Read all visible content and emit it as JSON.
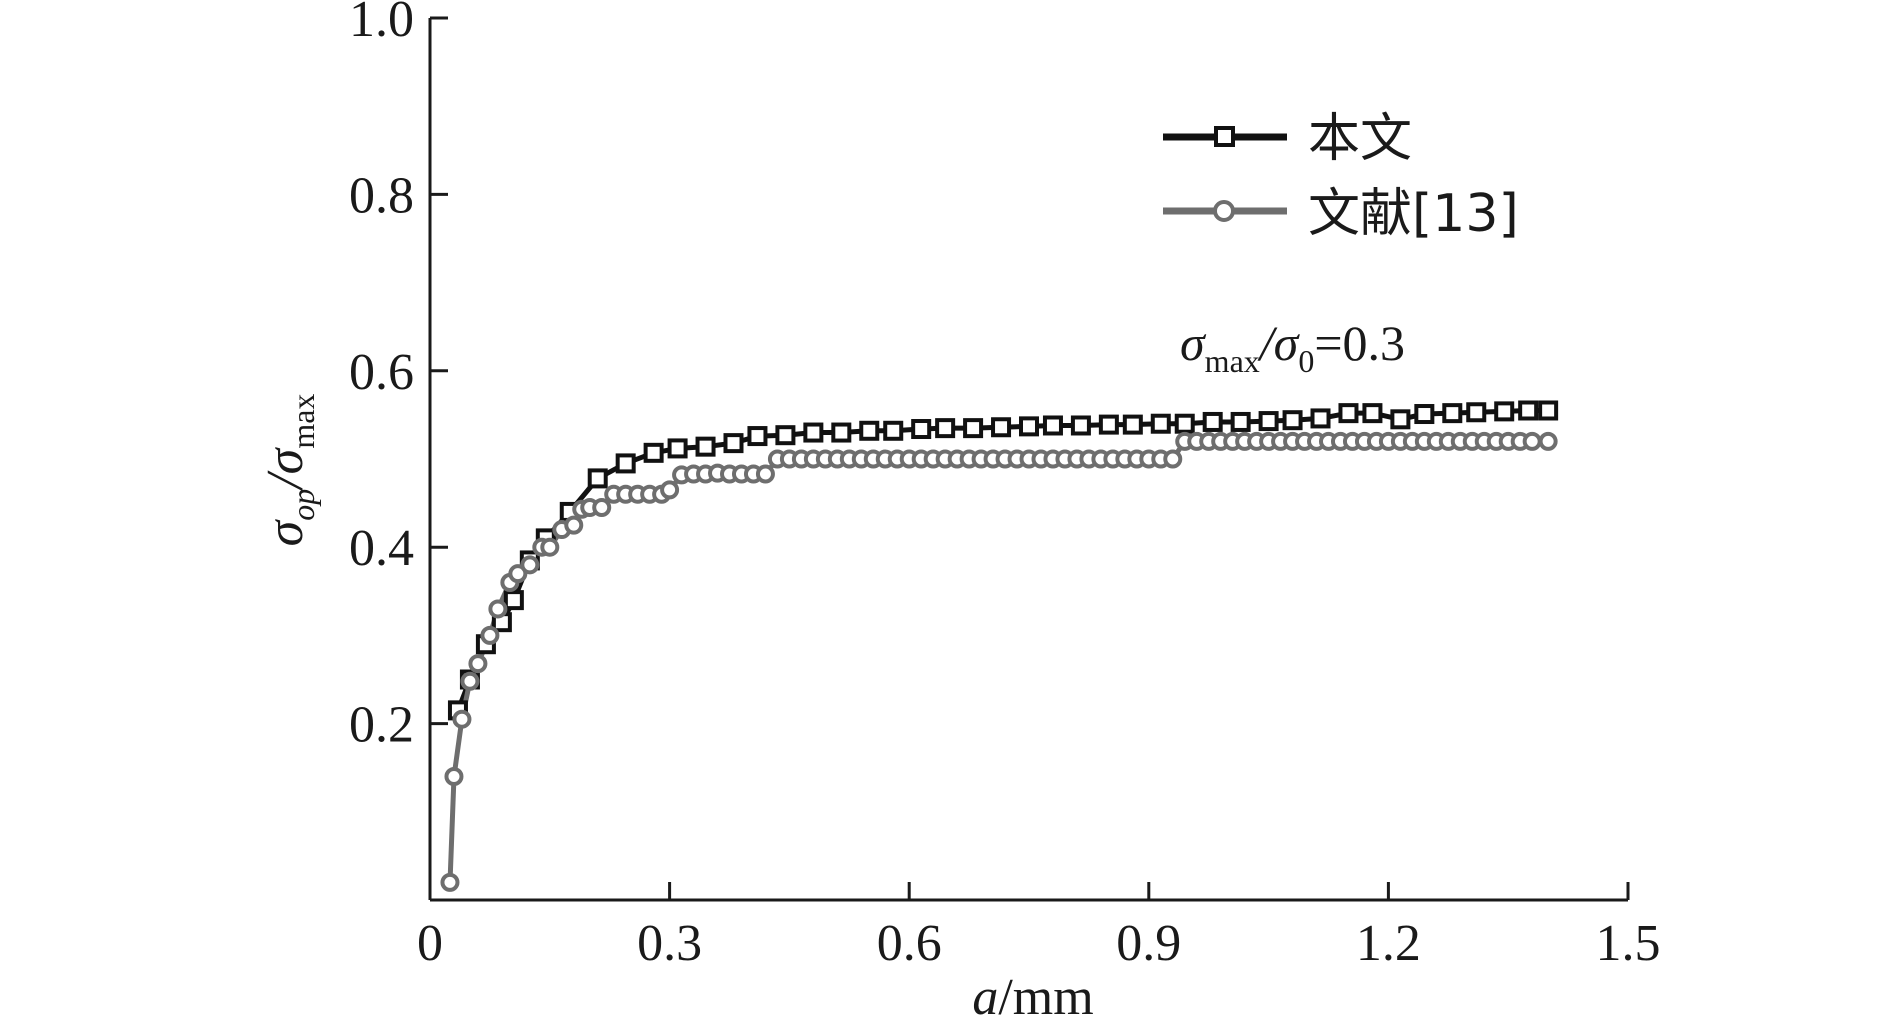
{
  "chart_data": {
    "type": "line",
    "x_ticks": [
      "0",
      "0.3",
      "0.6",
      "0.9",
      "1.2",
      "1.5"
    ],
    "y_ticks": [
      "0.2",
      "0.4",
      "0.6",
      "0.8",
      "1.0"
    ],
    "xlim": [
      0,
      1.5
    ],
    "ylim": [
      0,
      1.0
    ],
    "xlabel": {
      "var": "a",
      "unit": "/mm"
    },
    "ylabel": {
      "main1": "σ",
      "sub1": "op",
      "sep": "/σ",
      "sub2": "max"
    },
    "annotation": {
      "s1": "σ",
      "sub1": "max",
      "mid": "/σ",
      "sub2": "0",
      "tail": "=0.3"
    },
    "grid": false,
    "legend_position": "top-right",
    "series": [
      {
        "name": "本文",
        "color": "#111111",
        "marker": "square",
        "x": [
          0.035,
          0.05,
          0.07,
          0.09,
          0.105,
          0.125,
          0.145,
          0.175,
          0.21,
          0.245,
          0.28,
          0.31,
          0.345,
          0.38,
          0.41,
          0.445,
          0.48,
          0.515,
          0.55,
          0.58,
          0.615,
          0.645,
          0.68,
          0.715,
          0.75,
          0.78,
          0.815,
          0.85,
          0.88,
          0.915,
          0.945,
          0.98,
          1.015,
          1.05,
          1.08,
          1.115,
          1.15,
          1.18,
          1.215,
          1.245,
          1.28,
          1.31,
          1.345,
          1.375,
          1.4
        ],
        "y": [
          0.215,
          0.25,
          0.29,
          0.315,
          0.34,
          0.385,
          0.41,
          0.44,
          0.478,
          0.495,
          0.507,
          0.512,
          0.514,
          0.518,
          0.526,
          0.527,
          0.53,
          0.53,
          0.532,
          0.532,
          0.534,
          0.535,
          0.535,
          0.536,
          0.537,
          0.538,
          0.538,
          0.539,
          0.539,
          0.54,
          0.54,
          0.542,
          0.542,
          0.543,
          0.544,
          0.546,
          0.552,
          0.552,
          0.545,
          0.551,
          0.552,
          0.553,
          0.554,
          0.555,
          0.555
        ]
      },
      {
        "name": "文献[13]",
        "color": "#6e6e6e",
        "marker": "circle",
        "x": [
          0.025,
          0.03,
          0.04,
          0.05,
          0.06,
          0.075,
          0.085,
          0.1,
          0.11,
          0.125,
          0.14,
          0.15,
          0.165,
          0.18,
          0.19,
          0.2,
          0.215,
          0.23,
          0.245,
          0.26,
          0.275,
          0.29,
          0.3,
          0.315,
          0.33,
          0.345,
          0.36,
          0.375,
          0.39,
          0.405,
          0.42,
          0.435,
          0.45,
          0.465,
          0.48,
          0.495,
          0.51,
          0.525,
          0.54,
          0.555,
          0.57,
          0.585,
          0.6,
          0.615,
          0.63,
          0.645,
          0.66,
          0.675,
          0.69,
          0.705,
          0.72,
          0.735,
          0.75,
          0.765,
          0.78,
          0.795,
          0.81,
          0.825,
          0.84,
          0.855,
          0.87,
          0.885,
          0.9,
          0.915,
          0.93,
          0.945,
          0.96,
          0.975,
          0.99,
          1.005,
          1.02,
          1.035,
          1.05,
          1.065,
          1.08,
          1.095,
          1.11,
          1.125,
          1.14,
          1.155,
          1.17,
          1.185,
          1.2,
          1.215,
          1.23,
          1.245,
          1.26,
          1.275,
          1.29,
          1.305,
          1.32,
          1.335,
          1.35,
          1.365,
          1.38,
          1.4
        ],
        "y": [
          0.02,
          0.14,
          0.205,
          0.248,
          0.268,
          0.3,
          0.33,
          0.36,
          0.37,
          0.38,
          0.4,
          0.4,
          0.42,
          0.425,
          0.443,
          0.445,
          0.445,
          0.46,
          0.46,
          0.46,
          0.46,
          0.46,
          0.465,
          0.482,
          0.483,
          0.483,
          0.484,
          0.483,
          0.483,
          0.483,
          0.483,
          0.5,
          0.5,
          0.5,
          0.5,
          0.5,
          0.5,
          0.5,
          0.5,
          0.5,
          0.5,
          0.5,
          0.5,
          0.5,
          0.5,
          0.5,
          0.5,
          0.5,
          0.5,
          0.5,
          0.5,
          0.5,
          0.5,
          0.5,
          0.5,
          0.5,
          0.5,
          0.5,
          0.5,
          0.5,
          0.5,
          0.5,
          0.5,
          0.5,
          0.5,
          0.52,
          0.52,
          0.52,
          0.52,
          0.52,
          0.52,
          0.52,
          0.52,
          0.52,
          0.52,
          0.52,
          0.52,
          0.52,
          0.52,
          0.52,
          0.52,
          0.52,
          0.52,
          0.52,
          0.52,
          0.52,
          0.52,
          0.52,
          0.52,
          0.52,
          0.52,
          0.52,
          0.52,
          0.52,
          0.52,
          0.52
        ]
      }
    ]
  }
}
